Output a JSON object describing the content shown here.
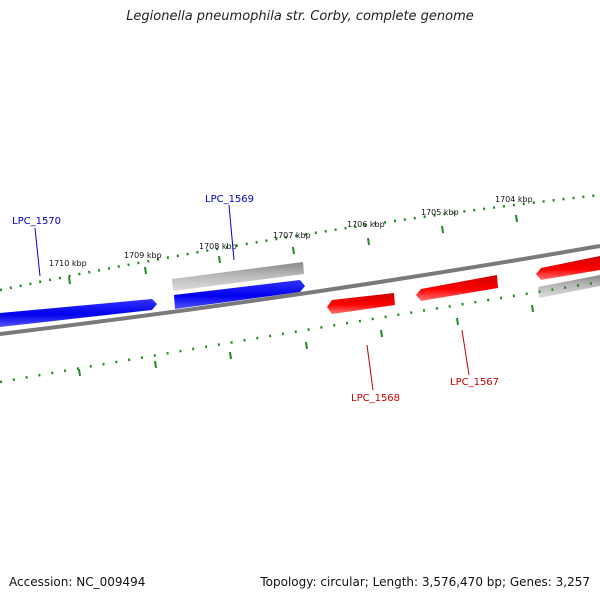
{
  "title": "Legionella pneumophila str. Corby, complete genome",
  "footer": {
    "accession": "Accession: NC_009494",
    "summary": "Topology: circular; Length: 3,576,470 bp; Genes: 3,257"
  },
  "colors": {
    "forward_gene": "#0000ee",
    "reverse_gene": "#ee0000",
    "other_feature": "#a8a8a8",
    "backbone": "#777777",
    "ticks": "#228822",
    "forward_label": "#0000cc",
    "reverse_label": "#cc0000"
  },
  "scale_labels": [
    "1710 kbp",
    "1709 kbp",
    "1708 kbp",
    "1707 kbp",
    "1706 kbp",
    "1705 kbp",
    "1704 kbp"
  ],
  "gene_labels": {
    "lpc_1570": "LPC_1570",
    "lpc_1569": "LPC_1569",
    "lpc_1568": "LPC_1568",
    "lpc_1567": "LPC_1567"
  }
}
